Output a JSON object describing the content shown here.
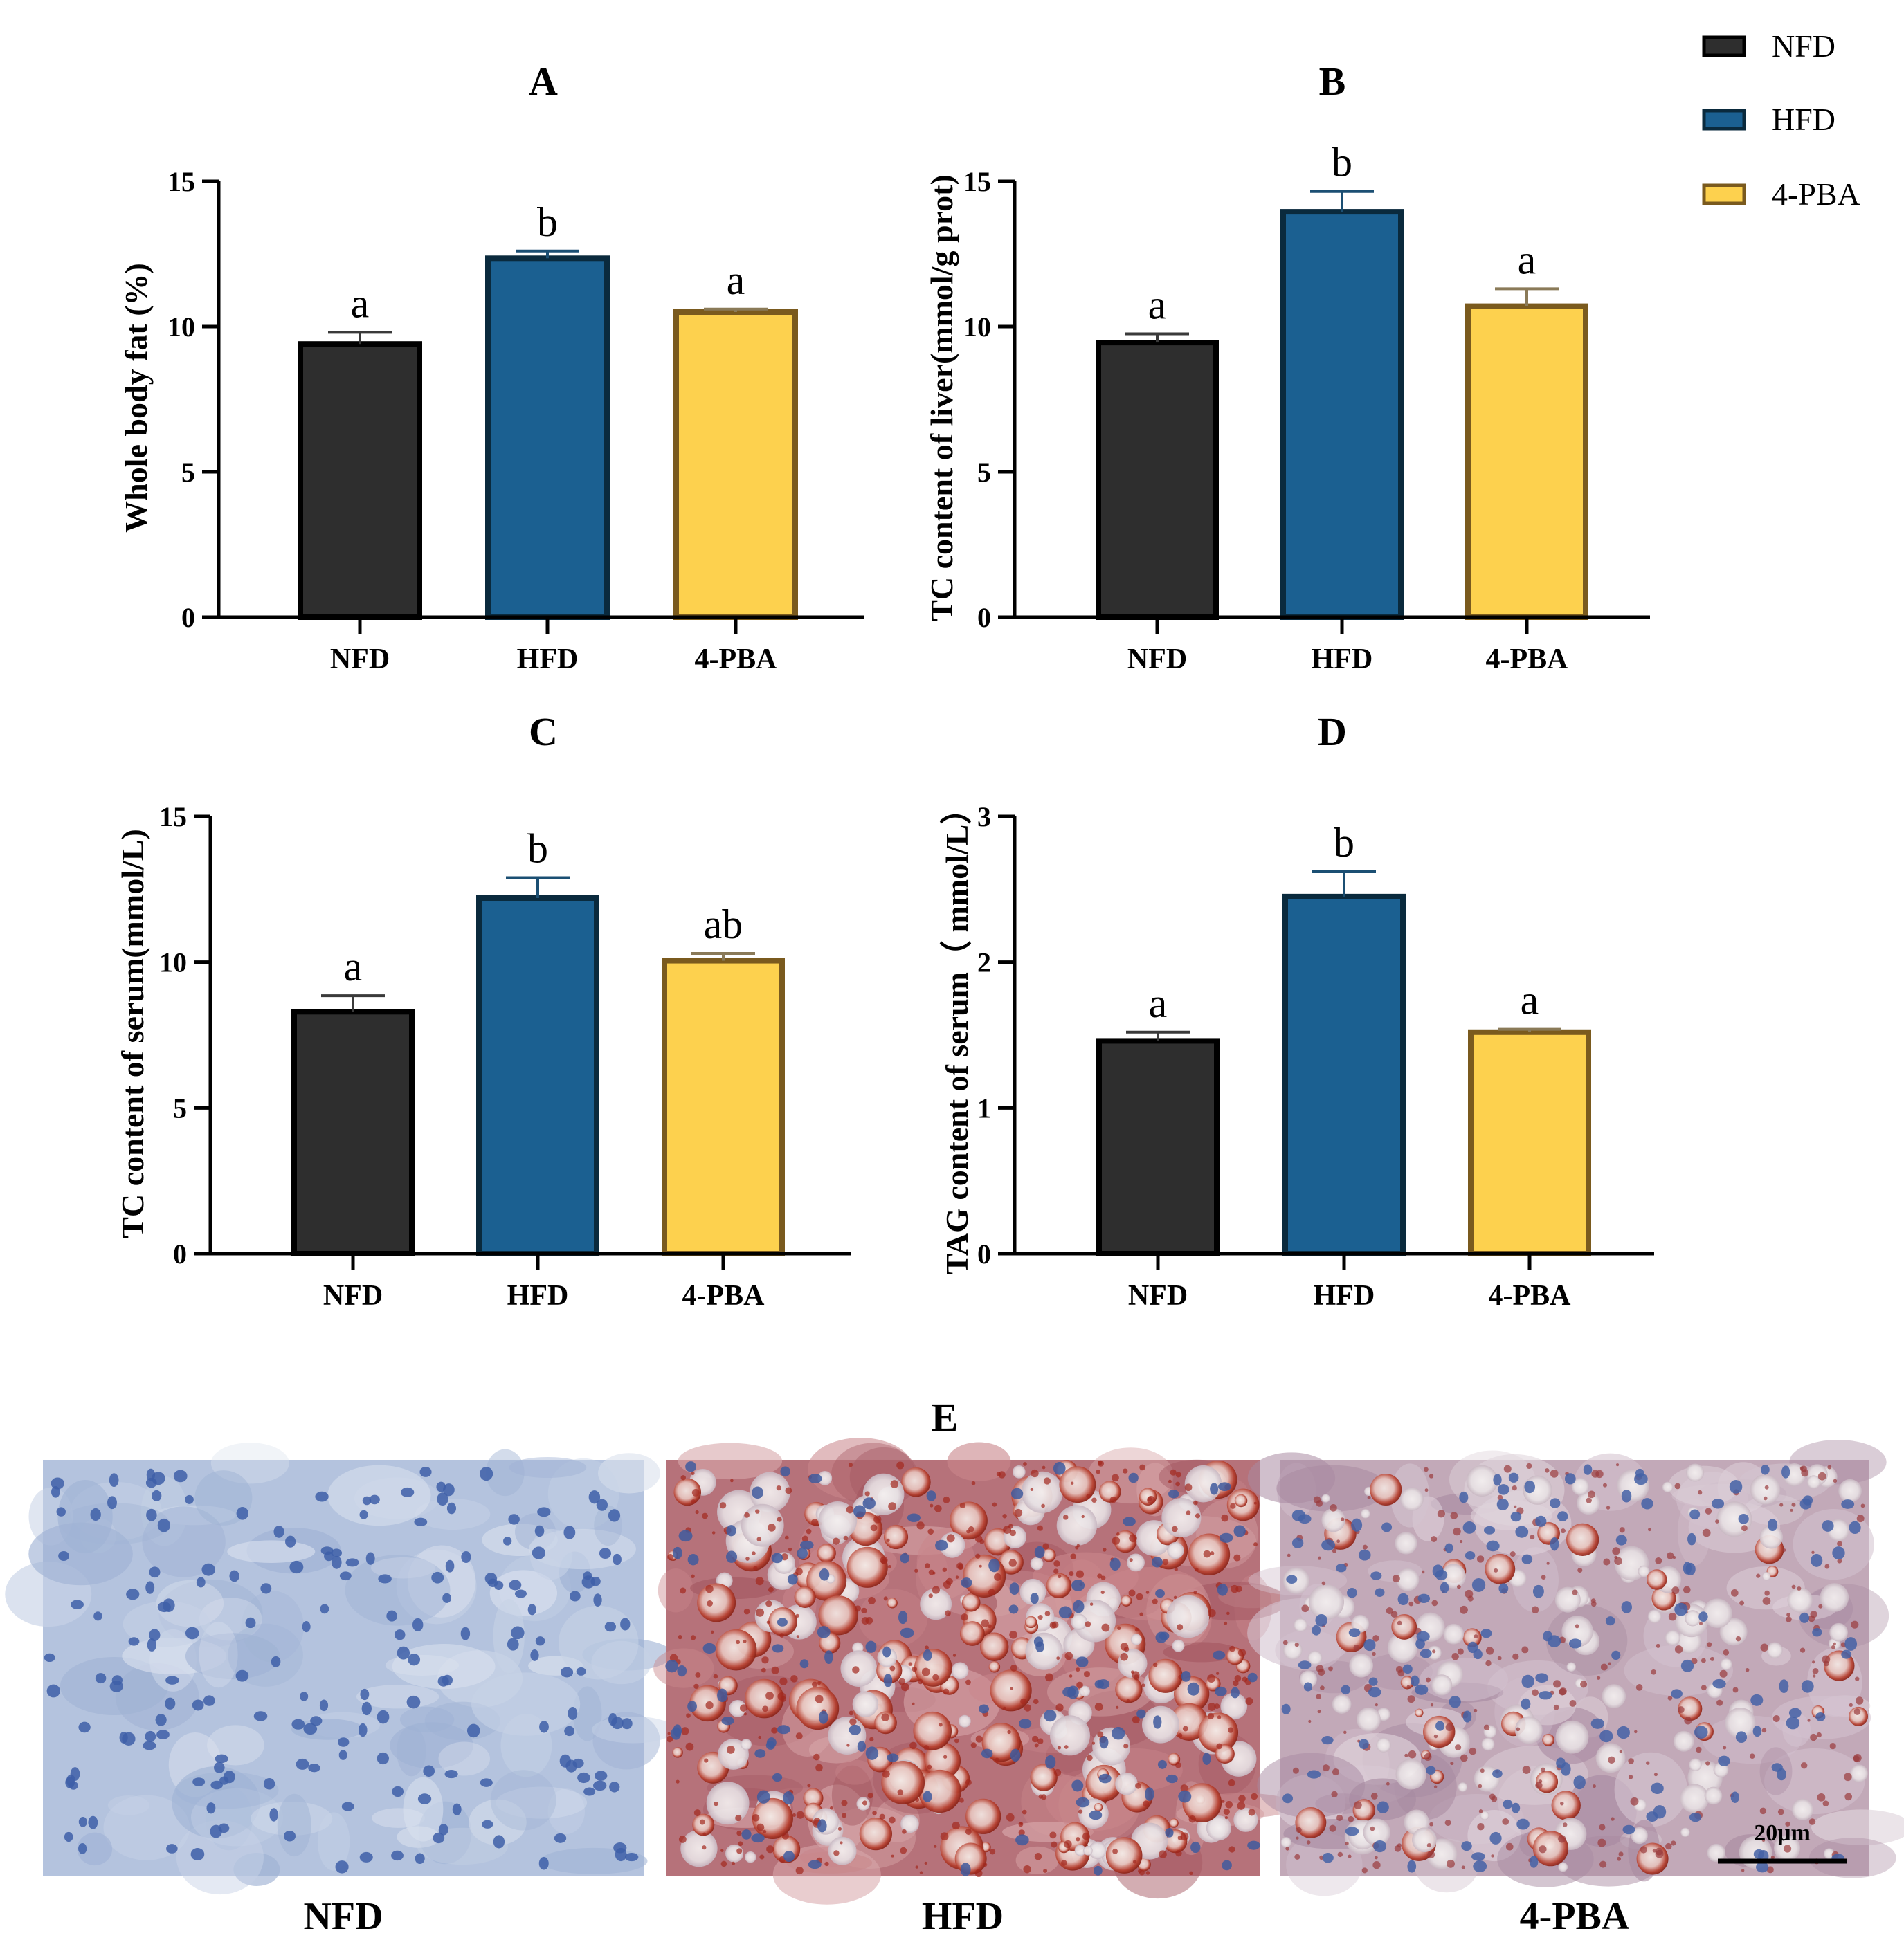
{
  "chart_data": [
    {
      "type": "bar",
      "panel": "A",
      "categories": [
        "NFD",
        "HFD",
        "4-PBA"
      ],
      "values": [
        9.4,
        12.35,
        10.5
      ],
      "errors": [
        0.4,
        0.25,
        0.1
      ],
      "significance": [
        "a",
        "b",
        "a"
      ],
      "ylabel": "Whole body fat (%)",
      "ylim": [
        0,
        15
      ],
      "yticks": [
        0,
        5,
        10,
        15
      ],
      "ytick_labels": [
        "0",
        "5",
        "10",
        "15"
      ]
    },
    {
      "type": "bar",
      "panel": "B",
      "categories": [
        "NFD",
        "HFD",
        "4-PBA"
      ],
      "values": [
        9.45,
        13.95,
        10.7
      ],
      "errors": [
        0.3,
        0.7,
        0.6
      ],
      "significance": [
        "a",
        "b",
        "a"
      ],
      "ylabel": "TC content of liver(mmol/g prot)",
      "ylim": [
        0,
        15
      ],
      "yticks": [
        0,
        5,
        10,
        15
      ],
      "ytick_labels": [
        "0",
        "5",
        "10",
        "15"
      ]
    },
    {
      "type": "bar",
      "panel": "C",
      "categories": [
        "NFD",
        "HFD",
        "4-PBA"
      ],
      "values": [
        8.3,
        12.2,
        10.05
      ],
      "errors": [
        0.55,
        0.7,
        0.25
      ],
      "significance": [
        "a",
        "b",
        "ab"
      ],
      "ylabel": "TC content of serum(mmol/L)",
      "ylim": [
        0,
        15
      ],
      "yticks": [
        0,
        5,
        10,
        15
      ],
      "ytick_labels": [
        "0",
        "5",
        "10",
        "15"
      ]
    },
    {
      "type": "bar",
      "panel": "D",
      "categories": [
        "NFD",
        "HFD",
        "4-PBA"
      ],
      "values": [
        1.46,
        2.45,
        1.52
      ],
      "errors": [
        0.06,
        0.17,
        0.02
      ],
      "significance": [
        "a",
        "b",
        "a"
      ],
      "ylabel": "TAG content of serum（ mmol/L）",
      "ylim": [
        0,
        3
      ],
      "yticks": [
        0,
        1,
        2,
        3
      ],
      "ytick_labels": [
        "0",
        "1",
        "2",
        "3"
      ]
    }
  ],
  "legend": [
    {
      "label": "NFD",
      "color": "#2e2e2e",
      "edge": "#000000"
    },
    {
      "label": "HFD",
      "color": "#1b6091",
      "edge": "#0a2a3d"
    },
    {
      "label": "4-PBA",
      "color": "#fdd14e",
      "edge": "#7a5a1e"
    }
  ],
  "micrographs": {
    "panel": "E",
    "labels": [
      "NFD",
      "HFD",
      "4-PBA"
    ],
    "scale_bar": "20μm"
  }
}
